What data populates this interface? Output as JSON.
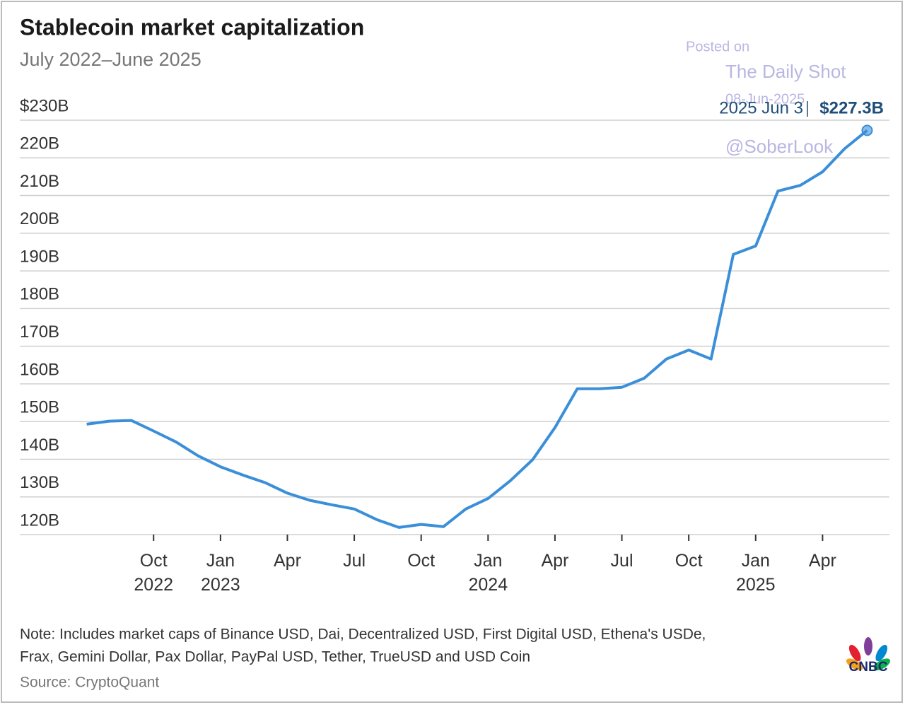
{
  "chart_data": {
    "type": "line",
    "title": "Stablecoin market capitalization",
    "subtitle": "July 2022–June 2025",
    "x": [
      "2022-07",
      "2022-08",
      "2022-09",
      "2022-10",
      "2022-11",
      "2022-12",
      "2023-01",
      "2023-02",
      "2023-03",
      "2023-04",
      "2023-05",
      "2023-06",
      "2023-07",
      "2023-08",
      "2023-09",
      "2023-10",
      "2023-11",
      "2023-12",
      "2024-01",
      "2024-02",
      "2024-03",
      "2024-04",
      "2024-05",
      "2024-06",
      "2024-07",
      "2024-08",
      "2024-09",
      "2024-10",
      "2024-11",
      "2024-12",
      "2025-01",
      "2025-02",
      "2025-03",
      "2025-04",
      "2025-05",
      "2025-06"
    ],
    "series": [
      {
        "name": "Stablecoin market capitalization",
        "color": "#3b8fd8",
        "values": [
          149.3,
          150.1,
          150.3,
          147.5,
          144.6,
          140.9,
          138,
          135.8,
          133.8,
          131,
          129.1,
          127.9,
          126.8,
          124,
          121.9,
          122.7,
          122.1,
          126.8,
          129.6,
          134.3,
          139.9,
          148.4,
          158.7,
          158.7,
          159.1,
          161.5,
          166.6,
          169,
          166.6,
          194.4,
          196.6,
          211.2,
          212.7,
          216.3,
          222.5,
          227.3
        ],
        "value_labels": [
          null,
          null,
          null,
          null,
          null,
          null,
          null,
          null,
          null,
          null,
          null,
          null,
          null,
          null,
          null,
          null,
          null,
          null,
          null,
          null,
          null,
          null,
          null,
          null,
          null,
          null,
          null,
          null,
          null,
          null,
          null,
          null,
          null,
          null,
          null,
          "$227.3B"
        ]
      }
    ],
    "annotation": "2025 Jun 3",
    "xlim": [
      "2022-04",
      "2025-07"
    ],
    "xticks": [
      {
        "value": "2022-10",
        "label": "Oct 2022"
      },
      {
        "value": "2023-01",
        "label": "Jan 2023"
      },
      {
        "value": "2023-04",
        "label": "Apr"
      },
      {
        "value": "2023-07",
        "label": "Jul"
      },
      {
        "value": "2023-10",
        "label": "Oct"
      },
      {
        "value": "2024-01",
        "label": "Jan 2024"
      },
      {
        "value": "2024-04",
        "label": "Apr"
      },
      {
        "value": "2024-07",
        "label": "Jul"
      },
      {
        "value": "2024-10",
        "label": "Oct"
      },
      {
        "value": "2025-01",
        "label": "Jan 2025"
      },
      {
        "value": "2025-04",
        "label": "Apr"
      }
    ],
    "ylim": [
      120,
      230
    ],
    "yticks": [
      {
        "value": 230,
        "label": "$230B"
      },
      {
        "value": 220,
        "label": "220B"
      },
      {
        "value": 210,
        "label": "210B"
      },
      {
        "value": 200,
        "label": "200B"
      },
      {
        "value": 190,
        "label": "190B"
      },
      {
        "value": 180,
        "label": "180B"
      },
      {
        "value": 170,
        "label": "170B"
      },
      {
        "value": 160,
        "label": "160B"
      },
      {
        "value": 150,
        "label": "150B"
      },
      {
        "value": 140,
        "label": "140B"
      },
      {
        "value": 130,
        "label": "130B"
      },
      {
        "value": 120,
        "label": "120B"
      }
    ],
    "grid": true,
    "note": "Note: Includes market caps of Binance USD, Dai, Decentralized USD, First Digital USD, Ethena's USDe,",
    "note_line2": "Frax, Gemini Dollar, Pax Dollar, PayPal USD, Tether, TrueUSD and USD Coin",
    "source": "Source: CryptoQuant",
    "logo": "CNBC",
    "watermark": {
      "posted": "Posted on",
      "publisher": "The Daily Shot",
      "date": "08-Jun-2025",
      "handle": "@SoberLook"
    }
  }
}
